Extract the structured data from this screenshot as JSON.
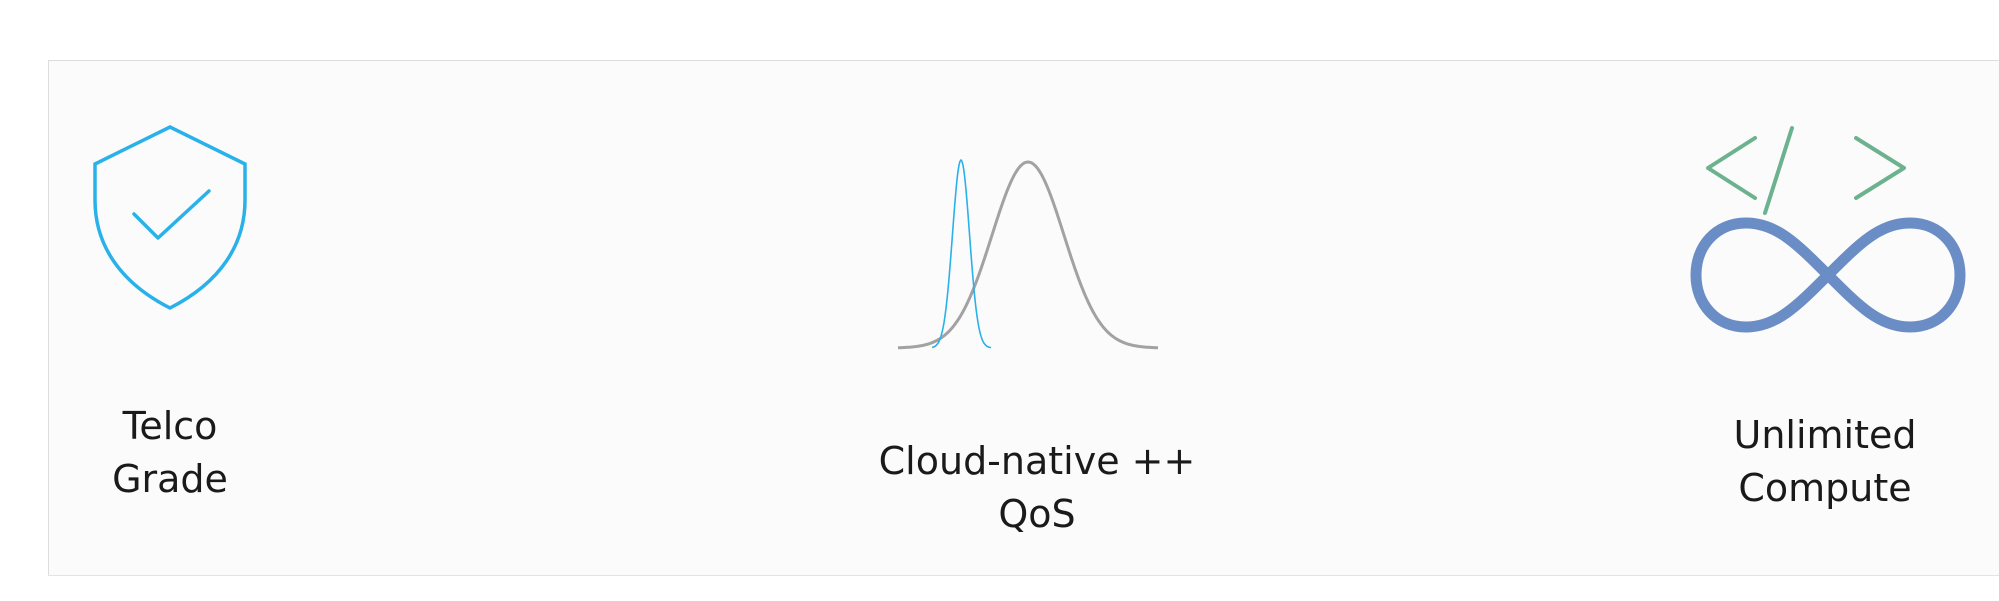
{
  "colors": {
    "background": "#fcfbfc",
    "telco_icon": "#29b1ea",
    "bell_narrow": "#29b1ea",
    "bell_wide": "#a2a2a2",
    "code_brackets": "#6cb28f",
    "infinity": "#6a8dc6",
    "text": "#1a1a1a"
  },
  "features": [
    {
      "icon": "shield-check-icon",
      "label_lines": [
        "Telco",
        "Grade"
      ]
    },
    {
      "icon": "bell-curves-icon",
      "label_lines": [
        "Cloud-native ++",
        "QoS"
      ]
    },
    {
      "icon": "code-infinity-icon",
      "label_lines": [
        "Unlimited",
        "Compute"
      ]
    }
  ]
}
